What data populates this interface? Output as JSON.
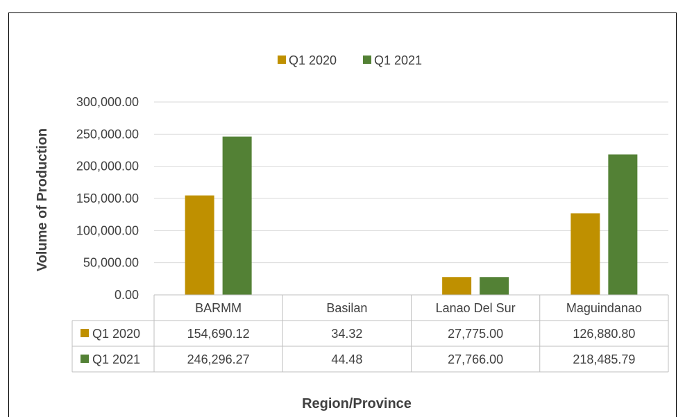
{
  "chart_data": {
    "type": "bar",
    "title": "",
    "xlabel": "Region/Province",
    "ylabel": "Volume of Production",
    "categories": [
      "BARMM",
      "Basilan",
      "Lanao Del Sur",
      "Maguindanao"
    ],
    "series": [
      {
        "name": "Q1 2020",
        "color": "#bf9000",
        "values": [
          154690.12,
          34.32,
          27775.0,
          126880.8
        ],
        "labels": [
          "154,690.12",
          "34.32",
          "27,775.00",
          "126,880.80"
        ]
      },
      {
        "name": "Q1 2021",
        "color": "#538135",
        "values": [
          246296.27,
          44.48,
          27766.0,
          218485.79
        ],
        "labels": [
          "246,296.27",
          "44.48",
          "27,766.00",
          "218,485.79"
        ]
      }
    ],
    "ylim": [
      0,
      300000
    ],
    "yticks": [
      "0.00",
      "50,000.00",
      "100,000.00",
      "150,000.00",
      "200,000.00",
      "250,000.00",
      "300,000.00"
    ],
    "grid": true,
    "legend": "top-center",
    "data_table": true
  }
}
